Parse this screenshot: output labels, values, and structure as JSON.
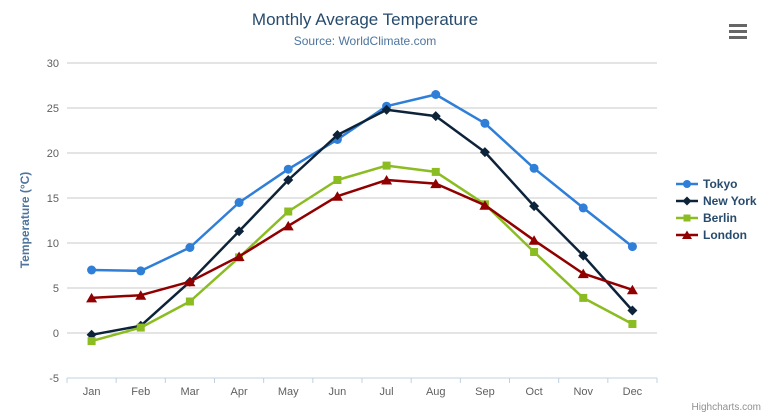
{
  "chart": {
    "credits": "Highcharts.com",
    "context_menu_icon": "hamburger-menu-icon"
  },
  "chart_data": {
    "type": "line",
    "title": "Monthly Average Temperature",
    "subtitle": "Source: WorldClimate.com",
    "xlabel": "",
    "ylabel": "Temperature (°C)",
    "ylim": [
      -5,
      30
    ],
    "ytick_interval": 5,
    "categories": [
      "Jan",
      "Feb",
      "Mar",
      "Apr",
      "May",
      "Jun",
      "Jul",
      "Aug",
      "Sep",
      "Oct",
      "Nov",
      "Dec"
    ],
    "series": [
      {
        "name": "Tokyo",
        "color": "#2f7ed8",
        "marker": "circle",
        "values": [
          7.0,
          6.9,
          9.5,
          14.5,
          18.2,
          21.5,
          25.2,
          26.5,
          23.3,
          18.3,
          13.9,
          9.6
        ]
      },
      {
        "name": "New York",
        "color": "#0d233a",
        "marker": "diamond",
        "values": [
          -0.2,
          0.8,
          5.7,
          11.3,
          17.0,
          22.0,
          24.8,
          24.1,
          20.1,
          14.1,
          8.6,
          2.5
        ]
      },
      {
        "name": "Berlin",
        "color": "#8bbc21",
        "marker": "square",
        "values": [
          -0.9,
          0.6,
          3.5,
          8.4,
          13.5,
          17.0,
          18.6,
          17.9,
          14.3,
          9.0,
          3.9,
          1.0
        ]
      },
      {
        "name": "London",
        "color": "#910000",
        "marker": "triangle-up",
        "values": [
          3.9,
          4.2,
          5.7,
          8.5,
          11.9,
          15.2,
          17.0,
          16.6,
          14.2,
          10.3,
          6.6,
          4.8
        ]
      }
    ],
    "layout": {
      "grid": true,
      "legend_position": "right",
      "grid_color": "#c8c8c8",
      "axis_line_color": "#c0d0e0",
      "axis_label_color": "#606060",
      "title_color": "#274b6d",
      "subtitle_color": "#4d759e",
      "yaxis_title_color": "#4d759e",
      "legend_text_color": "#274b6d"
    }
  }
}
